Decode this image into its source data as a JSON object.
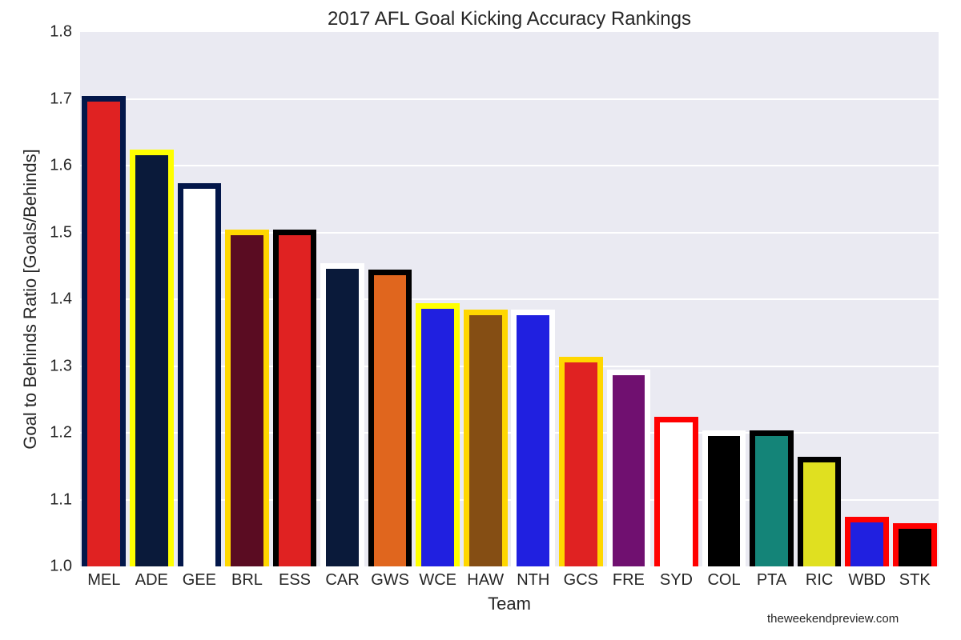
{
  "chart_data": {
    "type": "bar",
    "title": "2017 AFL Goal Kicking Accuracy Rankings",
    "xlabel": "Team",
    "ylabel": "Goal to Behinds Ratio [Goals/Behinds]",
    "ylim": [
      1.0,
      1.8
    ],
    "yticks": [
      "1.0",
      "1.1",
      "1.2",
      "1.3",
      "1.4",
      "1.5",
      "1.6",
      "1.7",
      "1.8"
    ],
    "grid": true,
    "categories": [
      "MEL",
      "ADE",
      "GEE",
      "BRL",
      "ESS",
      "CAR",
      "GWS",
      "WCE",
      "HAW",
      "NTH",
      "GCS",
      "FRE",
      "SYD",
      "COL",
      "PTA",
      "RIC",
      "WBD",
      "STK"
    ],
    "values": [
      1.7,
      1.62,
      1.57,
      1.5,
      1.5,
      1.45,
      1.44,
      1.39,
      1.38,
      1.38,
      1.31,
      1.29,
      1.22,
      1.2,
      1.2,
      1.16,
      1.07,
      1.06
    ],
    "fill_colors": [
      "#e02222",
      "#0a1a3a",
      "#ffffff",
      "#5a0c22",
      "#e02222",
      "#0a1a3a",
      "#e0661e",
      "#2020e0",
      "#854e14",
      "#2020e0",
      "#e02222",
      "#701070",
      "#ffffff",
      "#000000",
      "#148478",
      "#e0e020",
      "#2020e0",
      "#000000"
    ],
    "edge_colors": [
      "#03174a",
      "#ffff00",
      "#03174a",
      "#ffd700",
      "#000000",
      "#ffffff",
      "#000000",
      "#ffff00",
      "#ffd700",
      "#ffffff",
      "#ffd700",
      "#ffffff",
      "#ff0000",
      "#ffffff",
      "#000000",
      "#000000",
      "#ff0000",
      "#ff0000"
    ]
  },
  "credit": "theweekendpreview.com"
}
